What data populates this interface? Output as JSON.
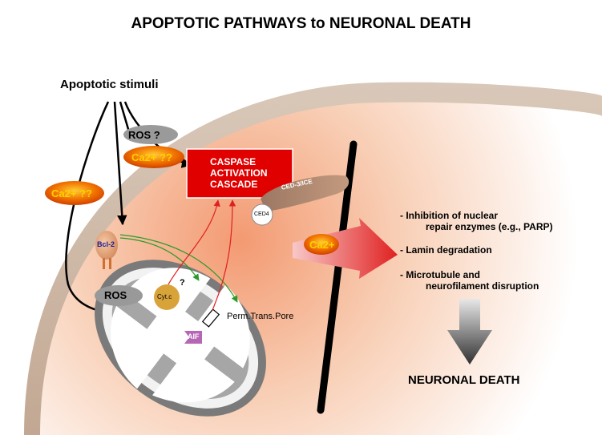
{
  "title": "APOPTOTIC PATHWAYS to NEURONAL DEATH",
  "stimuli_label": "Apoptotic stimuli",
  "ros_upper": "ROS ?",
  "ca_upper": "Ca2+ ??",
  "ca_left": "Ca2+ ??",
  "ca_influx": "Ca2+",
  "caspase": [
    "CASPASE",
    "ACTIVATION",
    "CASCADE"
  ],
  "ced3": "CED-3/ICE",
  "ced4": "CED4",
  "bcl2": "Bcl-2",
  "question": "?",
  "ros_mito": "ROS",
  "cytc": "Cyt.c",
  "aif": "AIF",
  "pore": "Perm.Trans.Pore",
  "effects": {
    "e1_line1": "- Inhibition of nuclear",
    "e1_line2": "repair enzymes  (e.g., PARP)",
    "e2": "- Lamin degradation",
    "e3_line1": "- Microtubule and",
    "e3_line2": "neurofilament disruption"
  },
  "outcome": "NEURONAL DEATH",
  "colors": {
    "caspase_box": "#e00000",
    "ca_badge": "#f07000",
    "ca_text": "#ffd200",
    "cytoplasm": "#f5b08a",
    "mito_outer": "#8c8c8c"
  }
}
